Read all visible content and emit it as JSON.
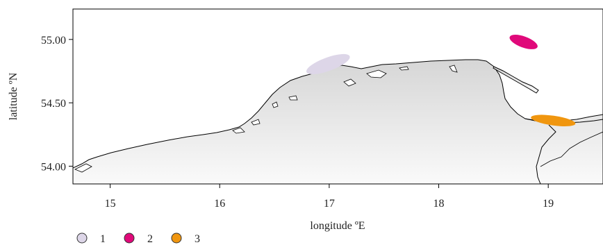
{
  "chart_data": {
    "type": "map",
    "xlabel": "longitude ºE",
    "ylabel": "latitude ºN",
    "xlim": [
      14.66,
      19.5
    ],
    "ylim": [
      53.86,
      55.24
    ],
    "x_ticks": [
      "15",
      "16",
      "17",
      "18",
      "19"
    ],
    "y_ticks": [
      "54.00",
      "54.50",
      "55.00"
    ],
    "legend": {
      "placement": "bottom-left",
      "items": [
        {
          "label": "1",
          "color": "#ddd6e8"
        },
        {
          "label": "2",
          "color": "#e0097a"
        },
        {
          "label": "3",
          "color": "#f0960f"
        }
      ]
    },
    "zones": [
      {
        "label": "1",
        "color": "#ddd6e8",
        "lon_range": [
          16.78,
          17.2
        ],
        "lat_range": [
          54.72,
          54.89
        ]
      },
      {
        "label": "2",
        "color": "#e0097a",
        "lon_range": [
          18.64,
          18.91
        ],
        "lat_range": [
          54.91,
          55.05
        ]
      },
      {
        "label": "3",
        "color": "#f0960f",
        "lon_range": [
          18.84,
          19.25
        ],
        "lat_range": [
          54.32,
          54.4
        ]
      }
    ],
    "land_color": "#e8e8e8",
    "grid": false
  }
}
